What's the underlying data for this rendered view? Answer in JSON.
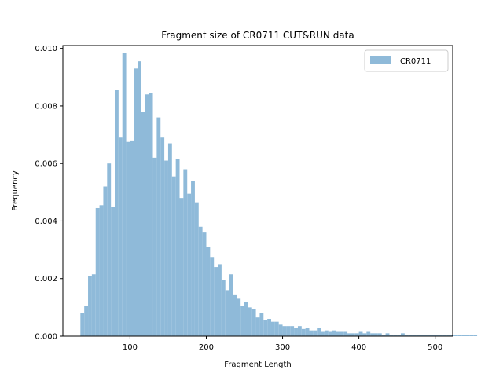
{
  "chart_data": {
    "type": "bar",
    "title": "Fragment size of CR0711 CUT&RUN data",
    "xlabel": "Fragment Length",
    "ylabel": "Frequency",
    "xlim": [
      12,
      523
    ],
    "ylim": [
      0,
      0.0101
    ],
    "xticks": [
      {
        "value": 100,
        "label": "100"
      },
      {
        "value": 200,
        "label": "200"
      },
      {
        "value": 300,
        "label": "300"
      },
      {
        "value": 400,
        "label": "400"
      },
      {
        "value": 500,
        "label": "500"
      }
    ],
    "yticks": [
      {
        "value": 0.0,
        "label": "0.000"
      },
      {
        "value": 0.002,
        "label": "0.002"
      },
      {
        "value": 0.004,
        "label": "0.004"
      },
      {
        "value": 0.006,
        "label": "0.006"
      },
      {
        "value": 0.008,
        "label": "0.008"
      },
      {
        "value": 0.01,
        "label": "0.010"
      }
    ],
    "legend": {
      "position": "top-right"
    },
    "series": [
      {
        "name": "CR0711",
        "color": "#8fbad9",
        "bin_width": 5,
        "bin_start": 35,
        "values": [
          0.0008,
          0.00105,
          0.0021,
          0.00215,
          0.00445,
          0.00455,
          0.0052,
          0.006,
          0.0045,
          0.00855,
          0.0069,
          0.00985,
          0.00675,
          0.0068,
          0.0093,
          0.00955,
          0.0078,
          0.0084,
          0.00845,
          0.0062,
          0.0076,
          0.0069,
          0.0061,
          0.0067,
          0.00555,
          0.00615,
          0.0048,
          0.0058,
          0.00495,
          0.0054,
          0.00465,
          0.0038,
          0.0036,
          0.0031,
          0.00275,
          0.0024,
          0.0025,
          0.00195,
          0.0016,
          0.00215,
          0.00145,
          0.0013,
          0.00105,
          0.0012,
          0.001,
          0.00095,
          0.00065,
          0.0008,
          0.00055,
          0.0006,
          0.0005,
          0.0005,
          0.0004,
          0.00035,
          0.00035,
          0.00035,
          0.0003,
          0.00035,
          0.00025,
          0.0003,
          0.0002,
          0.0002,
          0.0003,
          0.00015,
          0.0002,
          0.00015,
          0.0002,
          0.00015,
          0.00015,
          0.00015,
          0.0001,
          0.0001,
          0.0001,
          0.00015,
          0.0001,
          0.00015,
          0.0001,
          0.0001,
          0.0001,
          5e-05,
          0.0001,
          5e-05,
          5e-05,
          5e-05,
          0.0001,
          5e-05,
          5e-05,
          5e-05,
          5e-05,
          5e-05,
          5e-05,
          5e-05,
          5e-05,
          5e-05,
          5e-05,
          5e-05,
          5e-05,
          5e-05,
          5e-05,
          5e-05,
          5e-05,
          5e-05,
          5e-05,
          5e-05
        ]
      }
    ]
  }
}
